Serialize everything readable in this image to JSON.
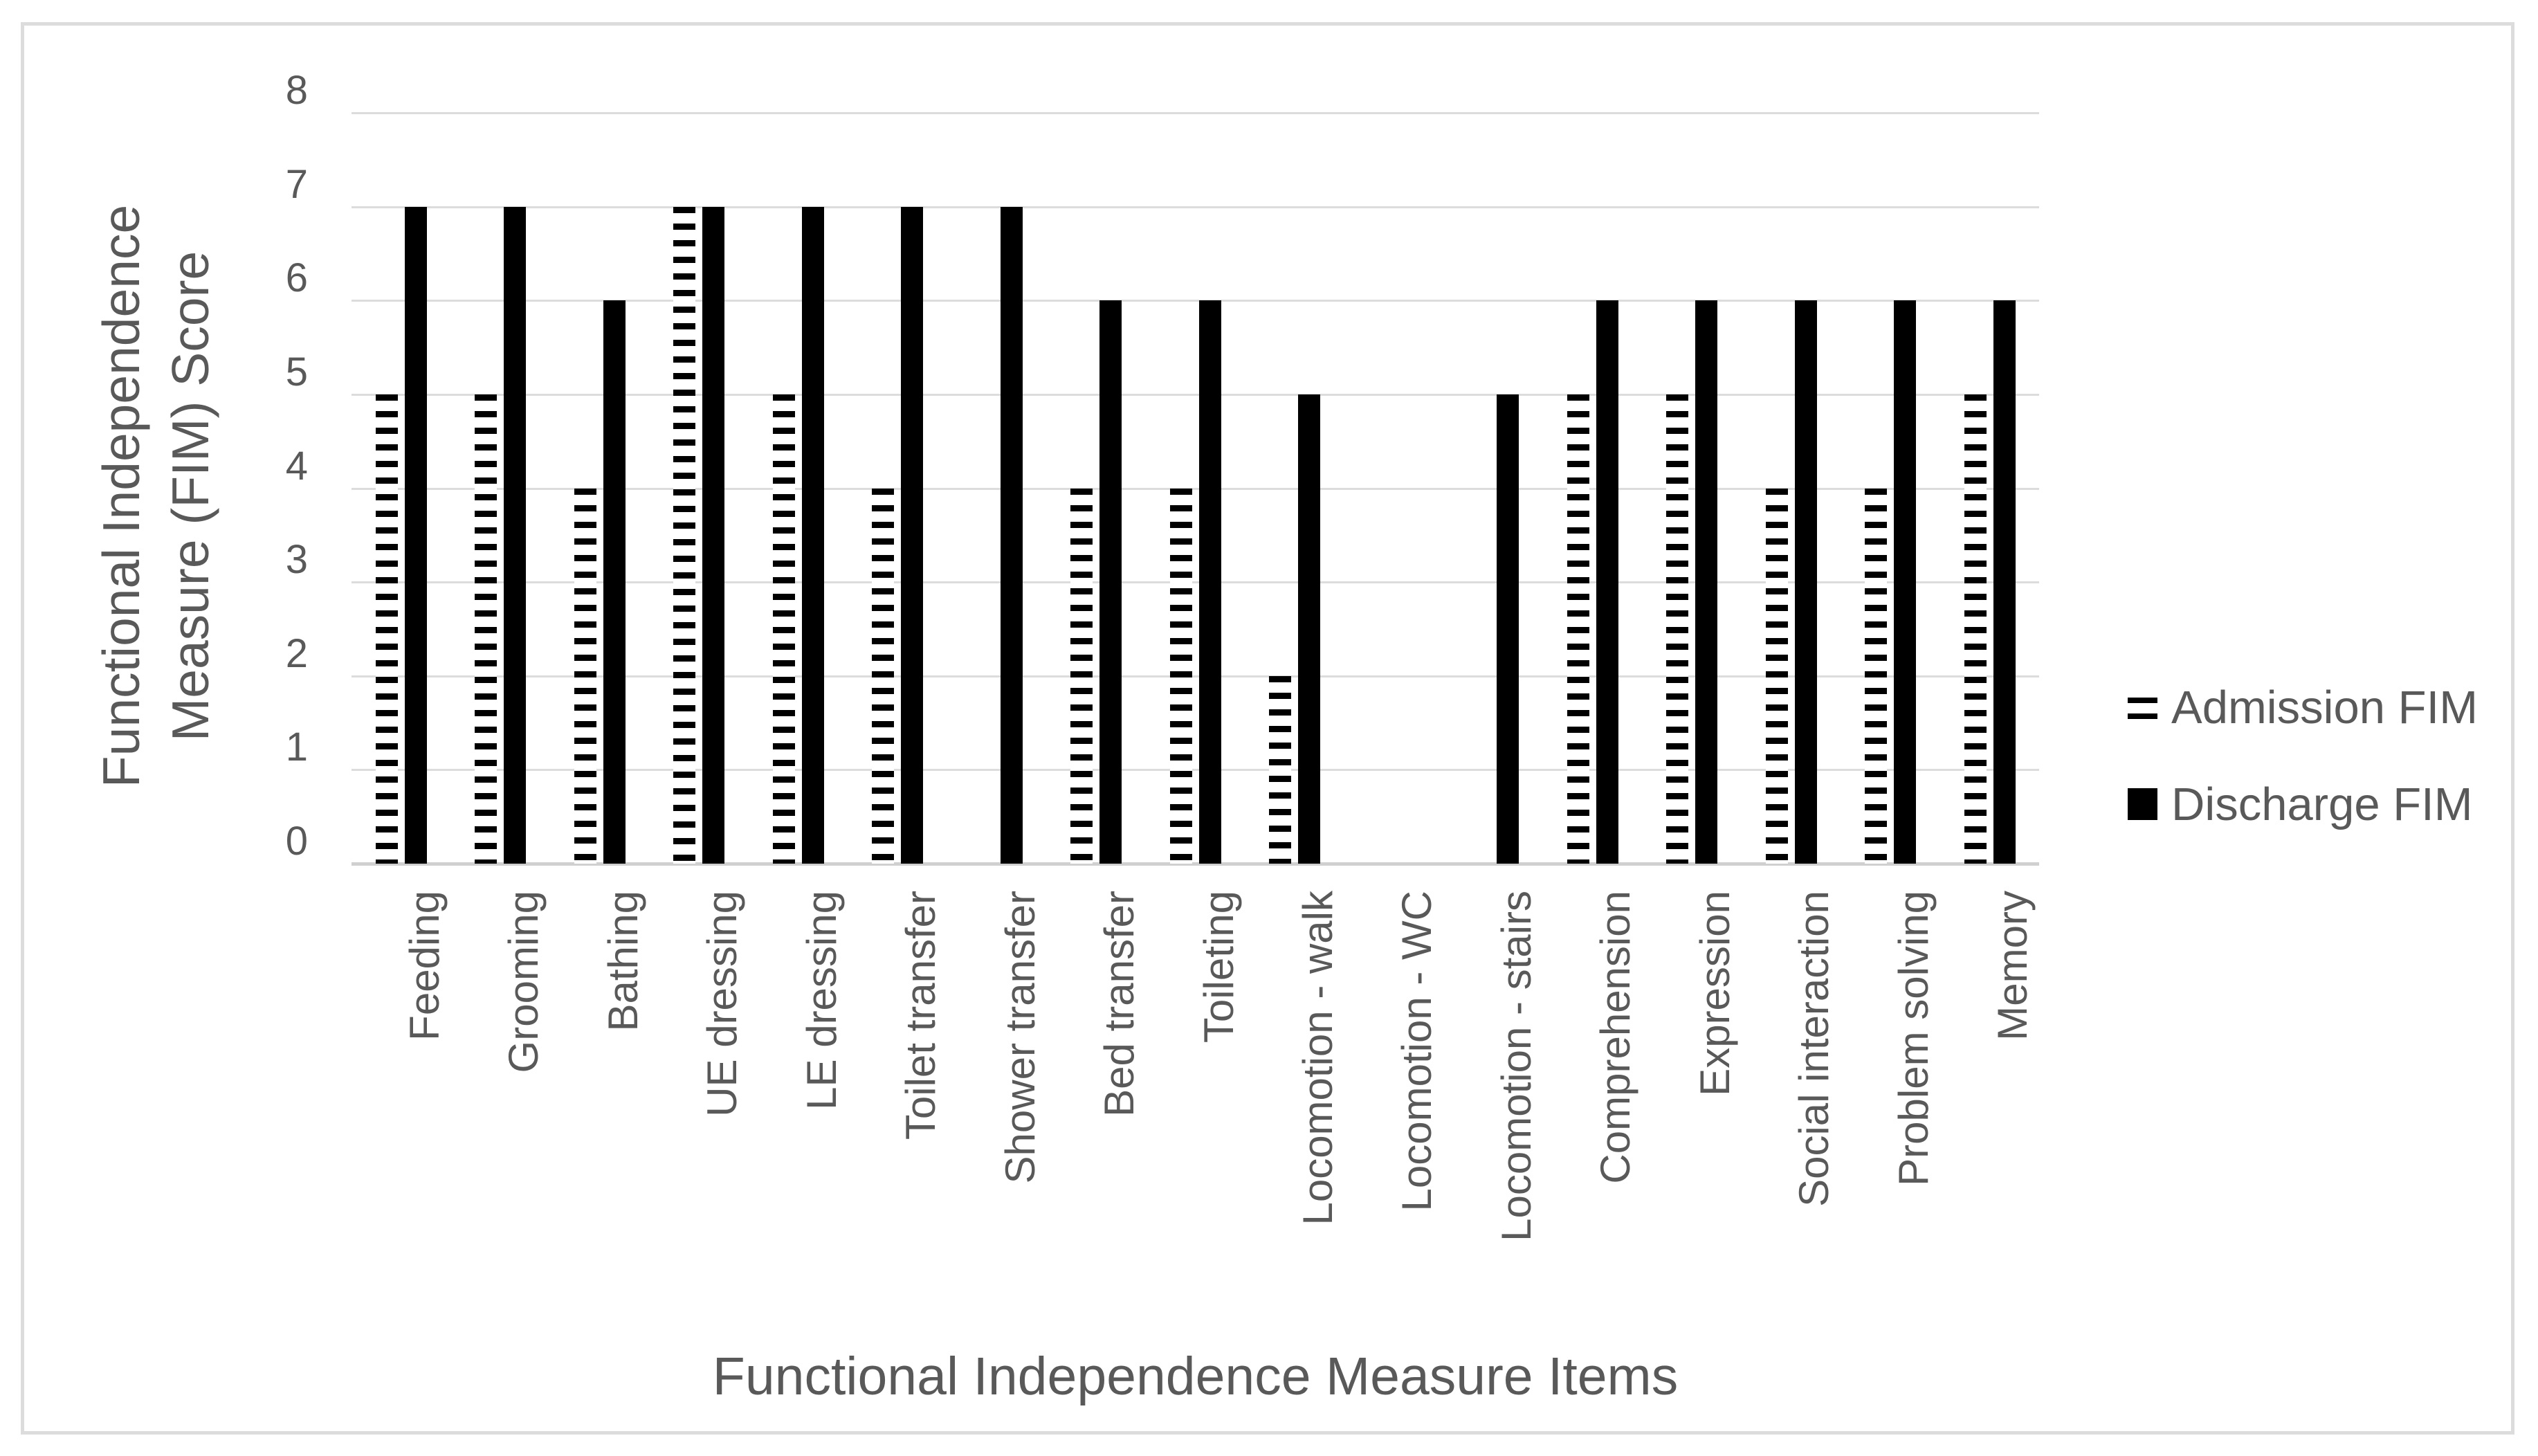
{
  "figure": {
    "background_color": "#ffffff",
    "border_color": "#dcdcdc"
  },
  "chart_data": {
    "type": "bar",
    "title": "",
    "xlabel": "Functional Independence Measure Items",
    "ylabel": "Functional Independence Measure (FIM) Score",
    "ylabel_lines": [
      "Functional Independence",
      "Measure (FIM) Score"
    ],
    "ylim": [
      0,
      8
    ],
    "yticks": [
      0,
      1,
      2,
      3,
      4,
      5,
      6,
      7,
      8
    ],
    "grid": "horizontal-on",
    "legend_position": "right",
    "categories": [
      "Feeding",
      "Grooming",
      "Bathing",
      "UE dressing",
      "LE dressing",
      "Toilet transfer",
      "Shower transfer",
      "Bed transfer",
      "Toileting",
      "Locomotion - walk",
      "Locomotion - WC",
      "Locomotion - stairs",
      "Comprehension",
      "Expression",
      "Social interaction",
      "Problem solving",
      "Memory"
    ],
    "series": [
      {
        "name": "Admission FIM",
        "fill_style": "horizontal-dash-pattern",
        "color": "#000000",
        "values": [
          5,
          5,
          4,
          7,
          5,
          4,
          0,
          4,
          4,
          2,
          0,
          0,
          5,
          5,
          4,
          4,
          5
        ]
      },
      {
        "name": "Discharge FIM",
        "fill_style": "solid",
        "color": "#000000",
        "values": [
          7,
          7,
          6,
          7,
          7,
          7,
          7,
          6,
          6,
          5,
          0,
          5,
          6,
          6,
          6,
          6,
          6
        ]
      }
    ],
    "colors": {
      "text": "#595959",
      "gridline": "#dcdcdc",
      "axis_line": "#d0d0d0",
      "bar": "#000000"
    }
  }
}
